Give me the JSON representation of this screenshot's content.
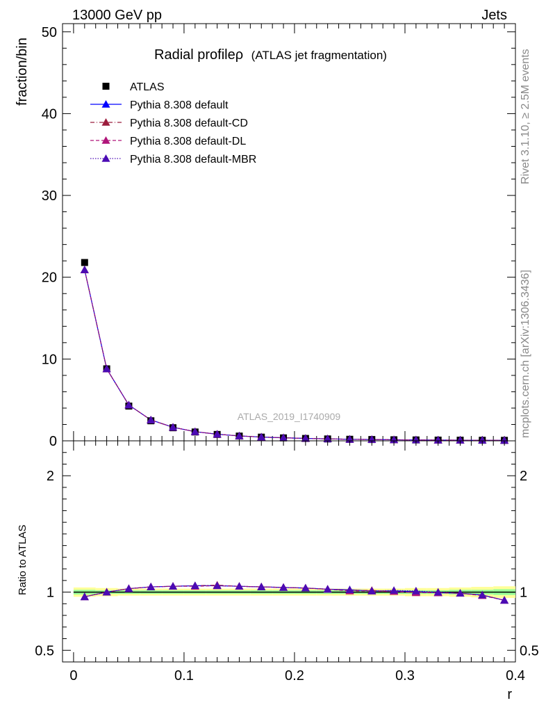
{
  "header": {
    "left": "13000 GeV pp",
    "right": "Jets"
  },
  "side_text": {
    "rivet": "Rivet 3.1.10, ≥ 2.5M events",
    "mcplots": "mcplots.cern.ch [arXiv:1306.3436]"
  },
  "watermark": "ATLAS_2019_I1740909",
  "title": {
    "main": "Radial profileρ",
    "sub": "(ATLAS jet fragmentation)"
  },
  "colors": {
    "data": "#000000",
    "default": "#0000ff",
    "cd": "#9b1c3c",
    "dl": "#b0157a",
    "mbr": "#4b0bb4",
    "band_yellow": "#ffff99",
    "band_green": "#99ff99"
  },
  "chart_data": {
    "type": "line",
    "x": [
      0.01,
      0.03,
      0.05,
      0.07,
      0.09,
      0.11,
      0.13,
      0.15,
      0.17,
      0.19,
      0.21,
      0.23,
      0.25,
      0.27,
      0.29,
      0.31,
      0.33,
      0.35,
      0.37,
      0.39
    ],
    "xlabel": "r",
    "xlim": [
      -0.01,
      0.4
    ],
    "x_ticks": [
      "0",
      "0.1",
      "0.2",
      "0.3",
      "0.4"
    ],
    "main_panel": {
      "ylabel": "fraction/bin",
      "ylim": [
        0,
        51
      ],
      "y_ticks": [
        "0",
        "10",
        "20",
        "30",
        "40",
        "50"
      ],
      "series": [
        {
          "name": "ATLAS",
          "key": "data",
          "marker": "square",
          "values": [
            21.8,
            8.8,
            4.25,
            2.45,
            1.6,
            1.08,
            0.78,
            0.58,
            0.45,
            0.36,
            0.29,
            0.23,
            0.19,
            0.16,
            0.13,
            0.11,
            0.09,
            0.08,
            0.07,
            0.06
          ]
        },
        {
          "name": "Pythia 8.308 default",
          "key": "default",
          "marker": "triangle",
          "dash": "solid",
          "values": [
            20.9,
            8.8,
            4.38,
            2.55,
            1.66,
            1.12,
            0.81,
            0.6,
            0.46,
            0.37,
            0.3,
            0.24,
            0.19,
            0.16,
            0.13,
            0.11,
            0.09,
            0.08,
            0.07,
            0.06
          ]
        },
        {
          "name": "Pythia 8.308 default-CD",
          "key": "cd",
          "marker": "triangle",
          "dash": "dashdot",
          "values": [
            20.9,
            8.8,
            4.38,
            2.55,
            1.66,
            1.12,
            0.81,
            0.6,
            0.46,
            0.37,
            0.3,
            0.24,
            0.19,
            0.16,
            0.13,
            0.11,
            0.09,
            0.08,
            0.07,
            0.06
          ]
        },
        {
          "name": "Pythia 8.308 default-DL",
          "key": "dl",
          "marker": "triangle",
          "dash": "dashed",
          "values": [
            20.9,
            8.8,
            4.38,
            2.55,
            1.66,
            1.12,
            0.81,
            0.6,
            0.46,
            0.37,
            0.3,
            0.24,
            0.19,
            0.16,
            0.13,
            0.11,
            0.09,
            0.08,
            0.07,
            0.06
          ]
        },
        {
          "name": "Pythia 8.308 default-MBR",
          "key": "mbr",
          "marker": "triangle",
          "dash": "dotted",
          "values": [
            20.9,
            8.8,
            4.38,
            2.55,
            1.66,
            1.12,
            0.81,
            0.6,
            0.46,
            0.37,
            0.3,
            0.24,
            0.19,
            0.16,
            0.13,
            0.11,
            0.09,
            0.08,
            0.07,
            0.06
          ]
        }
      ]
    },
    "ratio_panel": {
      "ylabel": "Ratio to ATLAS",
      "ylim": [
        0.4,
        2.3
      ],
      "y_ticks": [
        "0.5",
        "1",
        "2"
      ],
      "band_yellow_halfwidth": [
        0.04,
        0.035,
        0.03,
        0.03,
        0.03,
        0.03,
        0.03,
        0.03,
        0.03,
        0.03,
        0.03,
        0.03,
        0.03,
        0.03,
        0.03,
        0.035,
        0.035,
        0.04,
        0.045,
        0.05
      ],
      "band_green_halfwidth": [
        0.02,
        0.015,
        0.015,
        0.015,
        0.015,
        0.015,
        0.015,
        0.015,
        0.015,
        0.015,
        0.015,
        0.015,
        0.015,
        0.015,
        0.015,
        0.015,
        0.015,
        0.02,
        0.02,
        0.025
      ],
      "series": [
        {
          "name": "Pythia 8.308 default",
          "key": "default",
          "values": [
            0.96,
            1.0,
            1.03,
            1.045,
            1.05,
            1.055,
            1.055,
            1.05,
            1.045,
            1.04,
            1.035,
            1.025,
            1.02,
            1.01,
            1.01,
            1.005,
            0.995,
            0.99,
            0.975,
            0.93
          ]
        },
        {
          "name": "Pythia 8.308 default-CD",
          "key": "cd",
          "values": [
            0.96,
            1.0,
            1.03,
            1.045,
            1.05,
            1.055,
            1.06,
            1.05,
            1.045,
            1.04,
            1.035,
            1.025,
            1.015,
            1.015,
            1.005,
            1.0,
            0.995,
            0.99,
            0.975,
            0.93
          ]
        },
        {
          "name": "Pythia 8.308 default-DL",
          "key": "dl",
          "values": [
            0.96,
            1.0,
            1.03,
            1.045,
            1.05,
            1.05,
            1.055,
            1.05,
            1.045,
            1.04,
            1.035,
            1.025,
            1.01,
            1.01,
            1.005,
            0.995,
            0.995,
            0.99,
            0.97,
            0.93
          ]
        },
        {
          "name": "Pythia 8.308 default-MBR",
          "key": "mbr",
          "values": [
            0.96,
            1.0,
            1.03,
            1.045,
            1.05,
            1.055,
            1.055,
            1.05,
            1.045,
            1.04,
            1.035,
            1.025,
            1.02,
            1.01,
            1.015,
            1.01,
            1.0,
            0.99,
            0.975,
            0.93
          ]
        }
      ]
    }
  }
}
